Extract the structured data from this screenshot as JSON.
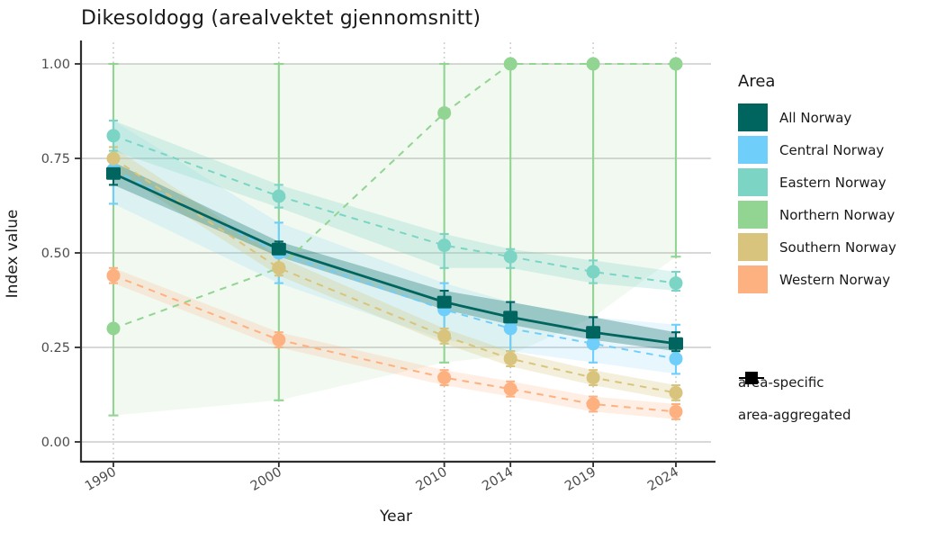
{
  "title": "Dikesoldogg (arealvektet gjennomsnitt)",
  "chart_data": {
    "type": "line",
    "title": "Dikesoldogg (arealvektet gjennomsnitt)",
    "xlabel": "Year",
    "ylabel": "Index value",
    "x": [
      1990,
      2000,
      2010,
      2014,
      2019,
      2024
    ],
    "x_tick_labels": [
      "1990",
      "2000",
      "2010",
      "2014",
      "2019",
      "2024"
    ],
    "y_ticks": [
      0,
      0.25,
      0.5,
      0.75,
      1.0
    ],
    "y_tick_labels": [
      "0.00",
      "0.25",
      "0.50",
      "0.75",
      "1.00"
    ],
    "ylim": [
      0,
      1
    ],
    "xlim": [
      1990,
      2024
    ],
    "grid": {
      "horizontal": "solid gray",
      "vertical": "dotted gray at each year"
    },
    "legend_position": "right",
    "series": [
      {
        "name": "All Norway",
        "color": "#00655E",
        "line_style": "solid",
        "marker": "square",
        "kind": "area-aggregated",
        "values": [
          0.71,
          0.51,
          0.37,
          0.33,
          0.29,
          0.26
        ],
        "err_low": [
          0.68,
          0.49,
          0.35,
          0.31,
          0.27,
          0.24
        ],
        "err_high": [
          0.74,
          0.53,
          0.4,
          0.37,
          0.33,
          0.29
        ],
        "ribbon_opacity": 0.3
      },
      {
        "name": "Central Norway",
        "color": "#6FCEFA",
        "line_style": "dashed",
        "marker": "circle",
        "kind": "area-specific",
        "values": [
          0.72,
          0.5,
          0.35,
          0.3,
          0.26,
          0.22
        ],
        "err_low": [
          0.63,
          0.42,
          0.27,
          0.24,
          0.21,
          0.18
        ],
        "err_high": [
          0.85,
          0.58,
          0.42,
          0.37,
          0.33,
          0.31
        ],
        "ribbon_opacity": 0.16
      },
      {
        "name": "Eastern Norway",
        "color": "#7CD5C4",
        "line_style": "dashed",
        "marker": "circle",
        "kind": "area-specific",
        "values": [
          0.81,
          0.65,
          0.52,
          0.49,
          0.45,
          0.42
        ],
        "err_low": [
          0.77,
          0.62,
          0.46,
          0.46,
          0.42,
          0.4
        ],
        "err_high": [
          0.85,
          0.68,
          0.55,
          0.51,
          0.48,
          0.45
        ],
        "ribbon_opacity": 0.25
      },
      {
        "name": "Northern Norway",
        "color": "#92D491",
        "line_style": "dashed",
        "marker": "circle",
        "kind": "area-specific",
        "values": [
          0.3,
          0.46,
          0.87,
          1.0,
          1.0,
          1.0
        ],
        "err_low": [
          0.07,
          0.11,
          0.21,
          0.23,
          0.33,
          0.49
        ],
        "err_high": [
          1.0,
          1.0,
          1.0,
          1.0,
          1.0,
          1.0
        ],
        "ribbon_opacity": 0.13
      },
      {
        "name": "Southern Norway",
        "color": "#D8C47C",
        "line_style": "dashed",
        "marker": "circle",
        "kind": "area-specific",
        "values": [
          0.75,
          0.46,
          0.28,
          0.22,
          0.17,
          0.13
        ],
        "err_low": [
          0.72,
          0.44,
          0.26,
          0.2,
          0.15,
          0.11
        ],
        "err_high": [
          0.78,
          0.49,
          0.3,
          0.24,
          0.19,
          0.15
        ],
        "ribbon_opacity": 0.28
      },
      {
        "name": "Western Norway",
        "color": "#FDB181",
        "line_style": "dashed",
        "marker": "circle",
        "kind": "area-specific",
        "values": [
          0.44,
          0.27,
          0.17,
          0.14,
          0.1,
          0.08
        ],
        "err_low": [
          0.42,
          0.25,
          0.15,
          0.12,
          0.08,
          0.06
        ],
        "err_high": [
          0.46,
          0.29,
          0.19,
          0.16,
          0.12,
          0.1
        ],
        "ribbon_opacity": 0.22
      }
    ],
    "draw_order": [
      "Northern Norway",
      "Western Norway",
      "Central Norway",
      "Southern Norway",
      "Eastern Norway",
      "All Norway"
    ]
  },
  "legend": {
    "title": "Area",
    "areas": [
      {
        "label": "All Norway",
        "color": "#00655E"
      },
      {
        "label": "Central Norway",
        "color": "#6FCEFA"
      },
      {
        "label": "Eastern Norway",
        "color": "#7CD5C4"
      },
      {
        "label": "Northern Norway",
        "color": "#92D491"
      },
      {
        "label": "Southern Norway",
        "color": "#D8C47C"
      },
      {
        "label": "Western Norway",
        "color": "#FDB181"
      }
    ],
    "shapes": [
      {
        "label": "area-specific",
        "marker": "circle"
      },
      {
        "label": "area-aggregated",
        "marker": "square"
      }
    ]
  },
  "style_colors": {
    "grid": "#CBCBCB",
    "dotted_grid": "#C4C4C4",
    "axis": "#2E2E2E",
    "tick_text": "#4D4D4D",
    "shape_glyph": "#000000"
  }
}
